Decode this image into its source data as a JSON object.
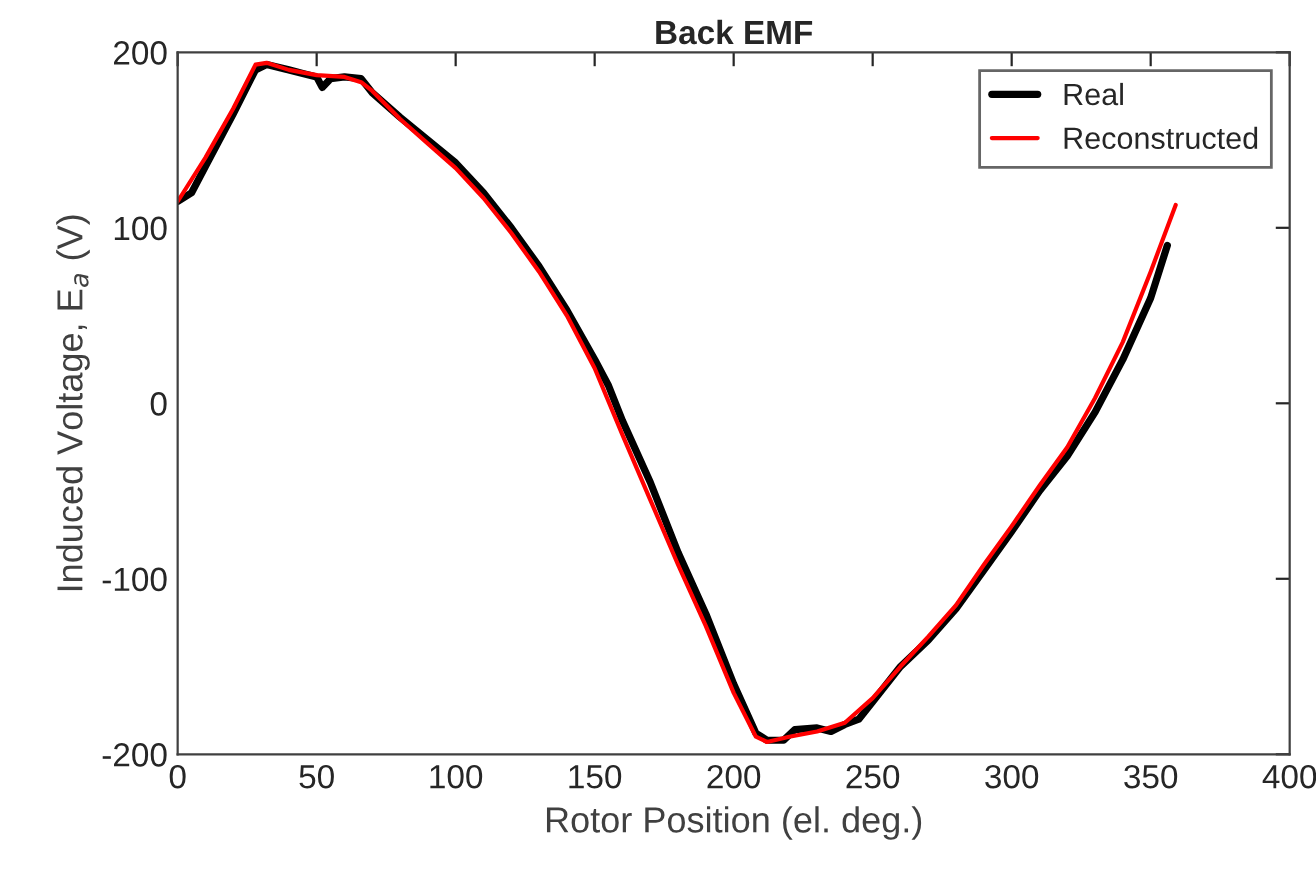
{
  "chart_data": {
    "type": "line",
    "title": "Back EMF",
    "xlabel": "Rotor Position (el. deg.)",
    "ylabel": "Induced Voltage, E$_{a}$ (V)",
    "xlim": [
      0,
      400
    ],
    "xticks": [
      0,
      50,
      100,
      150,
      200,
      250,
      300,
      350,
      400
    ],
    "ylim": [
      -200,
      200
    ],
    "yticks": [
      -200,
      -100,
      0,
      100,
      200
    ],
    "grid": false,
    "legend": "top right",
    "marker": "none",
    "line_style": "solid",
    "series": [
      {
        "name": "Real",
        "color": "#000000",
        "x": [
          0,
          5,
          10,
          20,
          28,
          32,
          40,
          45,
          50,
          52,
          55,
          60,
          66,
          70,
          80,
          90,
          100,
          110,
          120,
          130,
          140,
          150,
          155,
          160,
          170,
          180,
          190,
          200,
          208,
          212,
          218,
          222,
          230,
          235,
          240,
          245,
          250,
          260,
          270,
          280,
          290,
          300,
          310,
          320,
          330,
          340,
          350,
          356
        ],
        "values": [
          115,
          120,
          135,
          165,
          190,
          193,
          190,
          188,
          186,
          180,
          185,
          186,
          185,
          177,
          163,
          150,
          137,
          120,
          100,
          78,
          53,
          25,
          10,
          -10,
          -45,
          -85,
          -120,
          -160,
          -188,
          -192,
          -192,
          -186,
          -185,
          -187,
          -183,
          -180,
          -170,
          -150,
          -135,
          -117,
          -95,
          -73,
          -50,
          -30,
          -5,
          25,
          60,
          90
        ]
      },
      {
        "name": "Reconstructed",
        "color": "#ff0000",
        "x": [
          0,
          10,
          20,
          28,
          32,
          40,
          50,
          60,
          66,
          70,
          80,
          90,
          100,
          110,
          120,
          130,
          140,
          150,
          160,
          170,
          180,
          190,
          200,
          208,
          212,
          220,
          230,
          240,
          250,
          260,
          270,
          280,
          290,
          300,
          310,
          320,
          330,
          340,
          350,
          359
        ],
        "values": [
          115,
          140,
          168,
          193,
          194,
          190,
          187,
          186,
          183,
          178,
          162,
          148,
          134,
          117,
          97,
          75,
          50,
          20,
          -18,
          -55,
          -92,
          -127,
          -165,
          -190,
          -193,
          -190,
          -187,
          -182,
          -168,
          -150,
          -133,
          -115,
          -92,
          -70,
          -47,
          -25,
          3,
          35,
          75,
          113
        ]
      }
    ]
  }
}
